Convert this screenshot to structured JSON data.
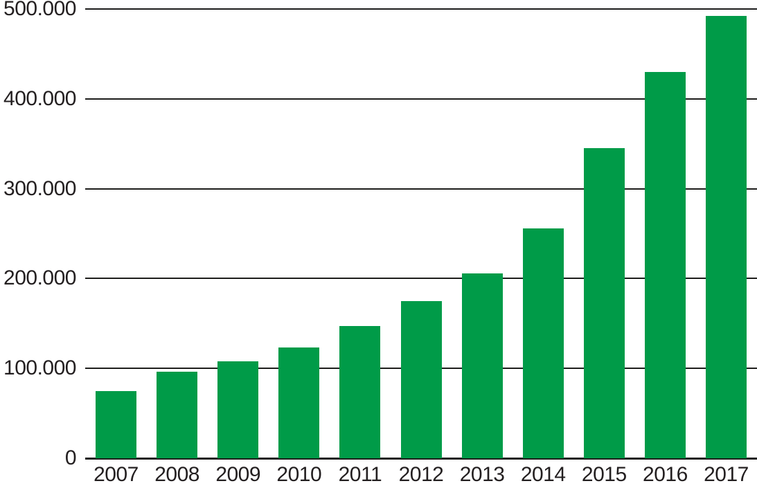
{
  "chart_data": {
    "type": "bar",
    "categories": [
      "2007",
      "2008",
      "2009",
      "2010",
      "2011",
      "2012",
      "2013",
      "2014",
      "2015",
      "2016",
      "2017"
    ],
    "values": [
      75000,
      96000,
      108000,
      123000,
      147000,
      175000,
      206000,
      256000,
      345000,
      430000,
      492000
    ],
    "title": "",
    "xlabel": "",
    "ylabel": "",
    "ylim": [
      0,
      500000
    ],
    "ytick_interval": 100000,
    "ytick_labels": [
      "0",
      "100.000",
      "200.000",
      "300.000",
      "400.000",
      "500.000"
    ],
    "grid": true,
    "legend": null,
    "bar_color": "#009b48",
    "grid_color": "#1d1d1b",
    "axis_color": "#1d1d1b",
    "text_color": "#231f20"
  }
}
